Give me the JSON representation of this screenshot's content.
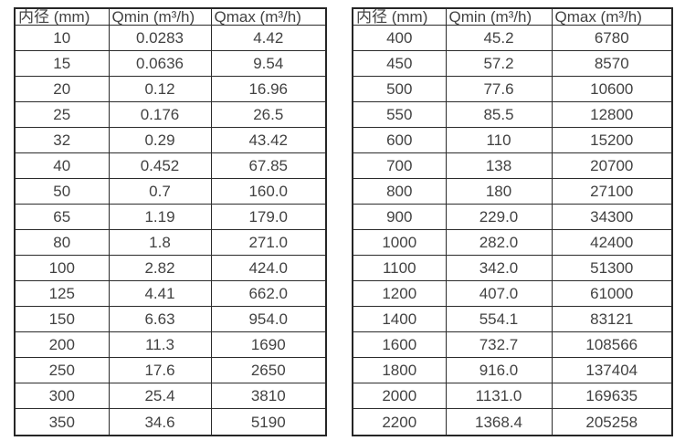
{
  "tables": [
    {
      "type": "table",
      "name": "small-diameter-flow-table",
      "headers": [
        "内径 (mm)",
        "Qmin (m³/h)",
        "Qmax (m³/h)"
      ],
      "rows": [
        [
          "10",
          "0.0283",
          "4.42"
        ],
        [
          "15",
          "0.0636",
          "9.54"
        ],
        [
          "20",
          "0.12",
          "16.96"
        ],
        [
          "25",
          "0.176",
          "26.5"
        ],
        [
          "32",
          "0.29",
          "43.42"
        ],
        [
          "40",
          "0.452",
          "67.85"
        ],
        [
          "50",
          "0.7",
          "160.0"
        ],
        [
          "65",
          "1.19",
          "179.0"
        ],
        [
          "80",
          "1.8",
          "271.0"
        ],
        [
          "100",
          "2.82",
          "424.0"
        ],
        [
          "125",
          "4.41",
          "662.0"
        ],
        [
          "150",
          "6.63",
          "954.0"
        ],
        [
          "200",
          "11.3",
          "1690"
        ],
        [
          "250",
          "17.6",
          "2650"
        ],
        [
          "300",
          "25.4",
          "3810"
        ],
        [
          "350",
          "34.6",
          "5190"
        ]
      ]
    },
    {
      "type": "table",
      "name": "large-diameter-flow-table",
      "headers": [
        "内径 (mm)",
        "Qmin (m³/h)",
        "Qmax (m³/h)"
      ],
      "rows": [
        [
          "400",
          "45.2",
          "6780"
        ],
        [
          "450",
          "57.2",
          "8570"
        ],
        [
          "500",
          "77.6",
          "10600"
        ],
        [
          "550",
          "85.5",
          "12800"
        ],
        [
          "600",
          "110",
          "15200"
        ],
        [
          "700",
          "138",
          "20700"
        ],
        [
          "800",
          "180",
          "27100"
        ],
        [
          "900",
          "229.0",
          "34300"
        ],
        [
          "1000",
          "282.0",
          "42400"
        ],
        [
          "1100",
          "342.0",
          "51300"
        ],
        [
          "1200",
          "407.0",
          "61000"
        ],
        [
          "1400",
          "554.1",
          "83121"
        ],
        [
          "1600",
          "732.7",
          "108566"
        ],
        [
          "1800",
          "916.0",
          "137404"
        ],
        [
          "2000",
          "1131.0",
          "169635"
        ],
        [
          "2200",
          "1368.4",
          "205258"
        ]
      ]
    }
  ],
  "colors": {
    "text": "#424242",
    "border": "#2b2b2b",
    "background": "#ffffff"
  }
}
